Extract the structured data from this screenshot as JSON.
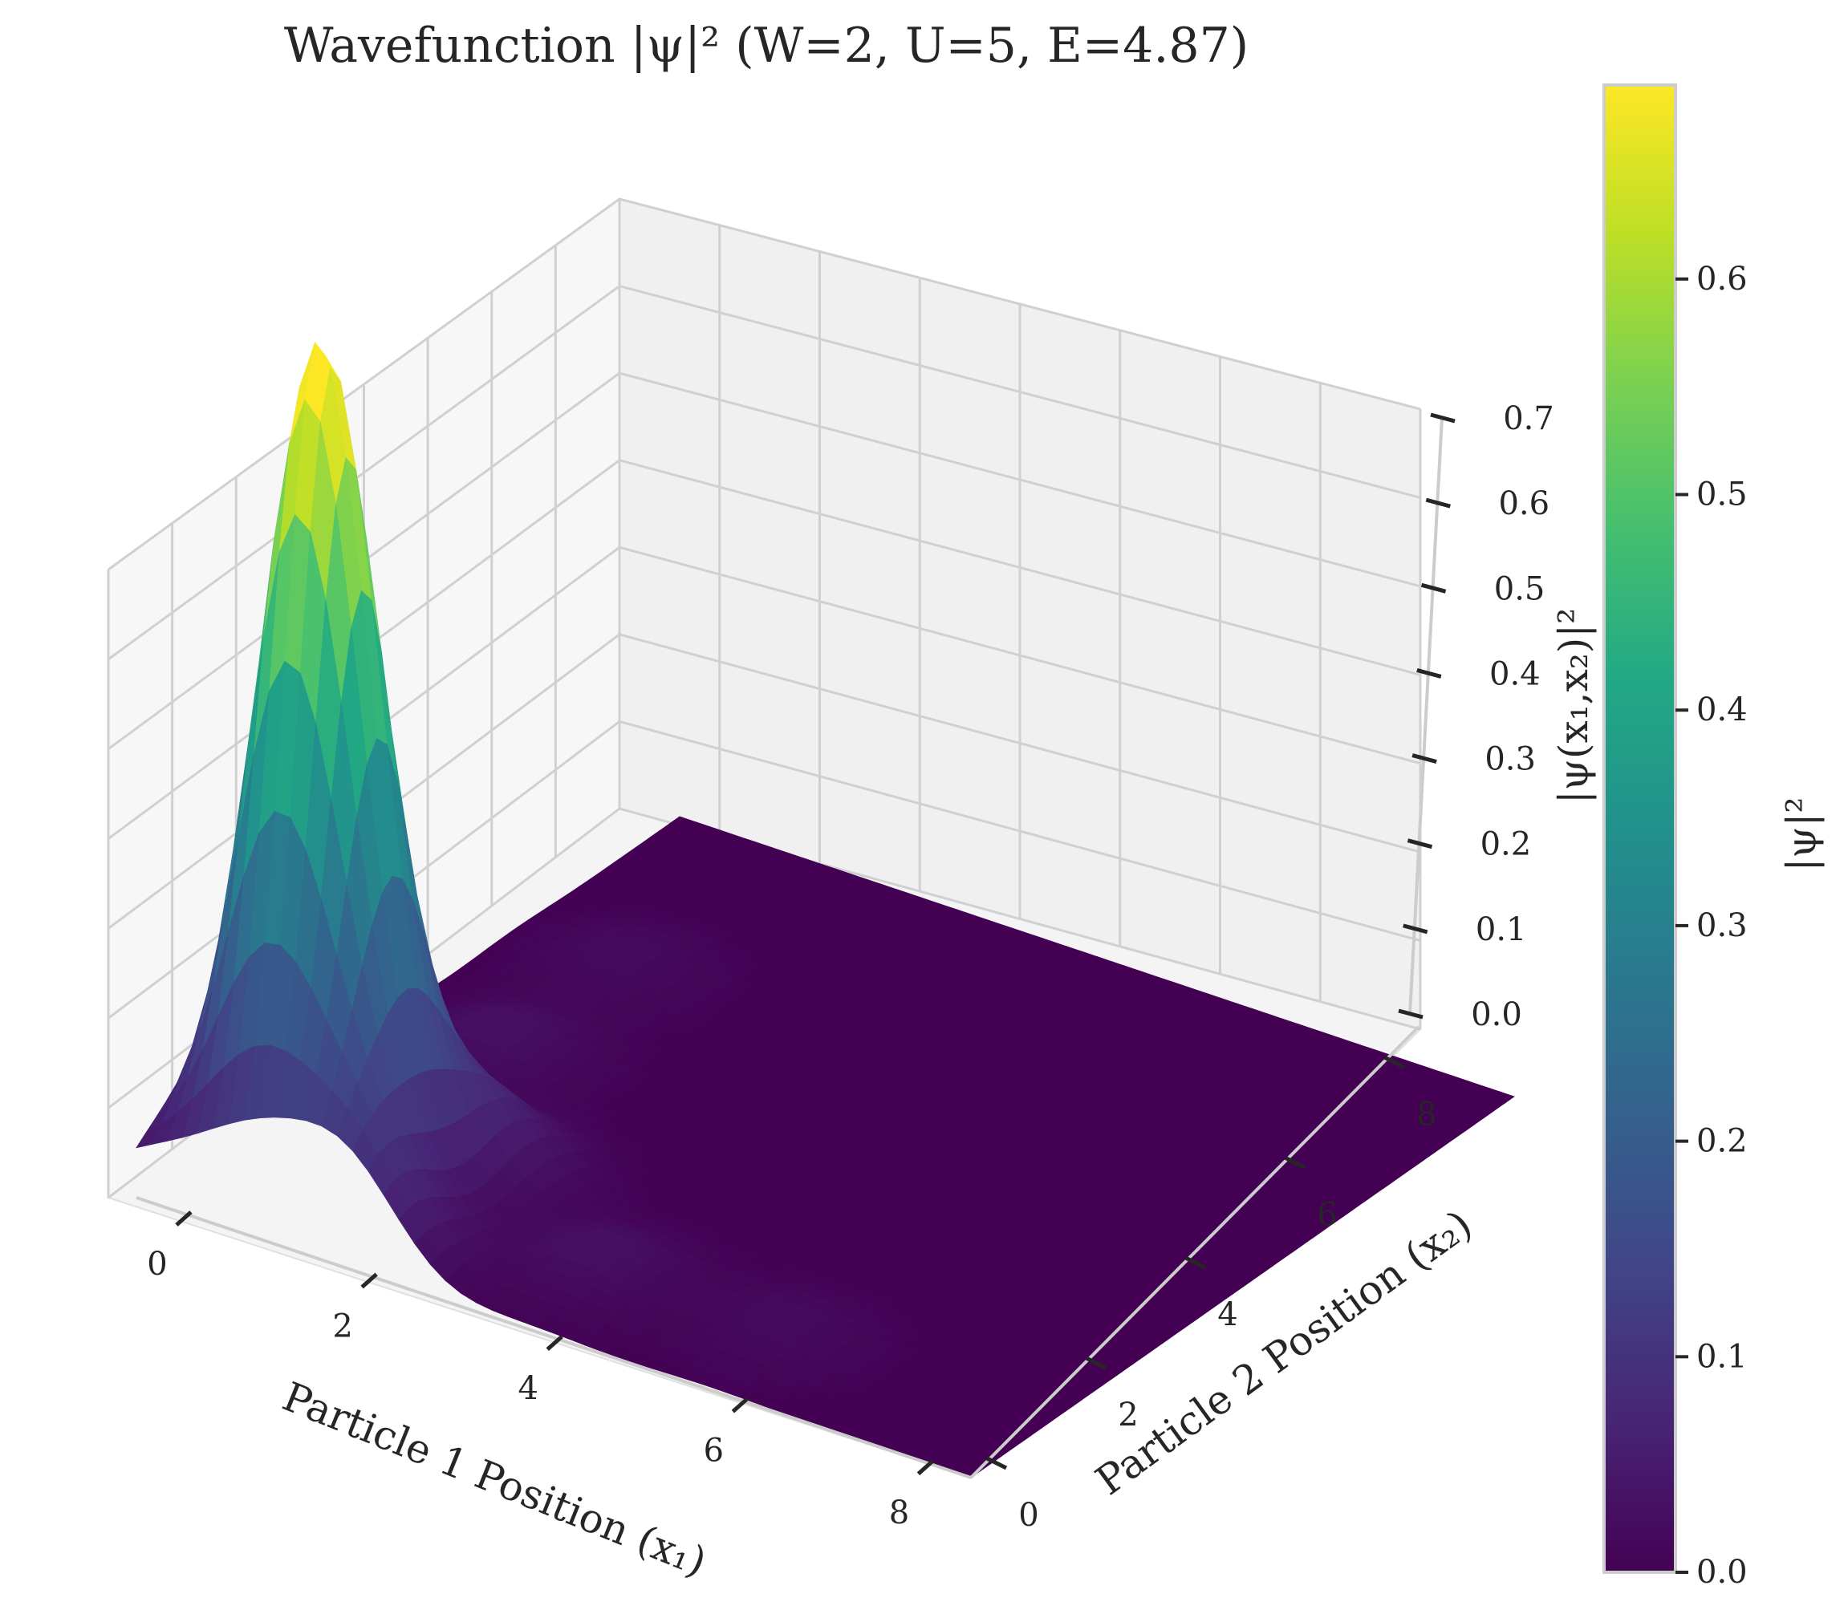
{
  "chart_data": {
    "type": "surface3d",
    "title": "Wavefunction |ψ|² (W=2, U=5, E=4.87)",
    "xlabel": "Particle 1 Position (x₁)",
    "ylabel": "Particle 2 Position (x₂)",
    "zlabel": "|ψ(x₁,x₂)|²",
    "colorbar_label": "|ψ|²",
    "x_range": [
      0,
      9
    ],
    "y_range": [
      0,
      9
    ],
    "z_range": [
      0,
      0.7
    ],
    "x_ticks": [
      "0",
      "2",
      "4",
      "6",
      "8"
    ],
    "y_ticks": [
      "0",
      "2",
      "4",
      "6",
      "8"
    ],
    "z_ticks": [
      "0.0",
      "0.1",
      "0.2",
      "0.3",
      "0.4",
      "0.5",
      "0.6",
      "0.7"
    ],
    "colorbar_ticks": [
      "0.0",
      "0.1",
      "0.2",
      "0.3",
      "0.4",
      "0.5",
      "0.6"
    ],
    "colorbar_range": [
      0,
      0.69
    ],
    "colormap": "viridis",
    "grid": true,
    "peaks": [
      {
        "x1": 1.2,
        "x2": 1.2,
        "value": 0.69
      },
      {
        "x1": 0.2,
        "x2": 2.2,
        "value": 0.1
      },
      {
        "x1": 2.2,
        "x2": 0.2,
        "value": 0.1
      },
      {
        "x1": 0.2,
        "x2": 0.2,
        "value": 0.04
      },
      {
        "x1": 2.2,
        "x2": 2.2,
        "value": 0.07
      },
      {
        "x1": 4.2,
        "x2": 1.2,
        "value": 0.03
      },
      {
        "x1": 1.2,
        "x2": 4.2,
        "value": 0.03
      },
      {
        "x1": 6.2,
        "x2": 1.2,
        "value": 0.02
      },
      {
        "x1": 1.2,
        "x2": 6.2,
        "value": 0.02
      }
    ]
  }
}
